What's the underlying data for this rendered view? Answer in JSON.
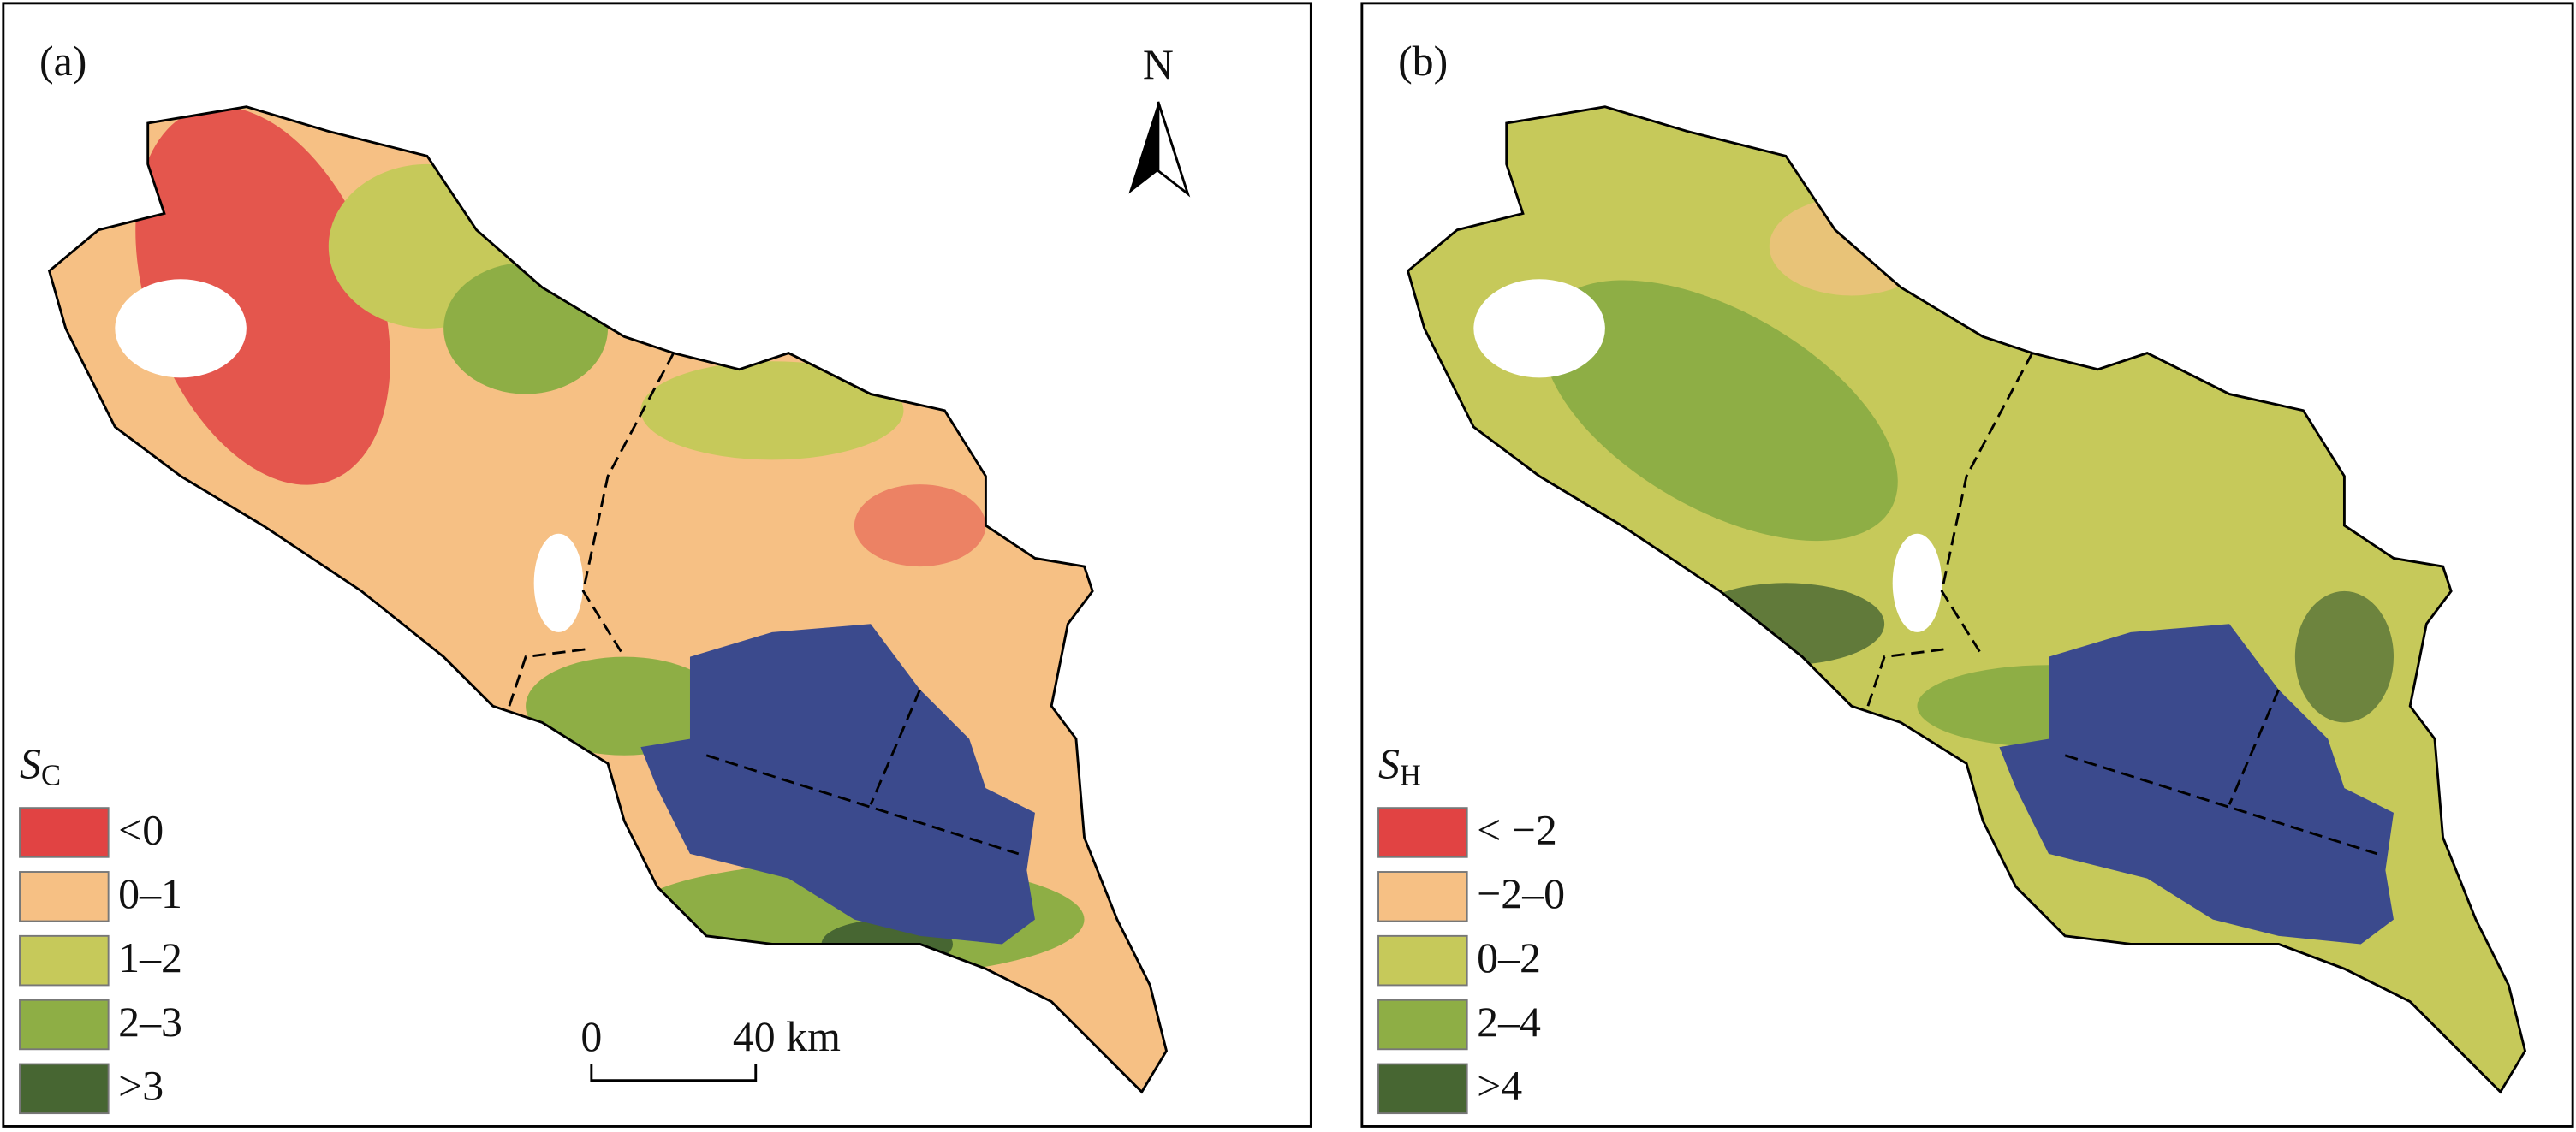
{
  "panels": [
    {
      "label": "(a)",
      "legend": {
        "symbol": "S",
        "subscript": "C",
        "items": [
          {
            "label": "<0",
            "color": "#e14343"
          },
          {
            "label": "0–1",
            "color": "#f6c084"
          },
          {
            "label": "1–2",
            "color": "#c6c95a"
          },
          {
            "label": "2–3",
            "color": "#8eae45"
          },
          {
            "label": ">3",
            "color": "#476632"
          }
        ]
      },
      "north": "N",
      "scale_bar": {
        "start": "0",
        "end": "40 km"
      }
    },
    {
      "label": "(b)",
      "legend": {
        "symbol": "S",
        "subscript": "H",
        "items": [
          {
            "label": "< −2",
            "color": "#e14343"
          },
          {
            "label": "−2–0",
            "color": "#f6c084"
          },
          {
            "label": "0–2",
            "color": "#c6c95a"
          },
          {
            "label": "2–4",
            "color": "#8eae45"
          },
          {
            "label": ">4",
            "color": "#476632"
          }
        ]
      }
    }
  ]
}
